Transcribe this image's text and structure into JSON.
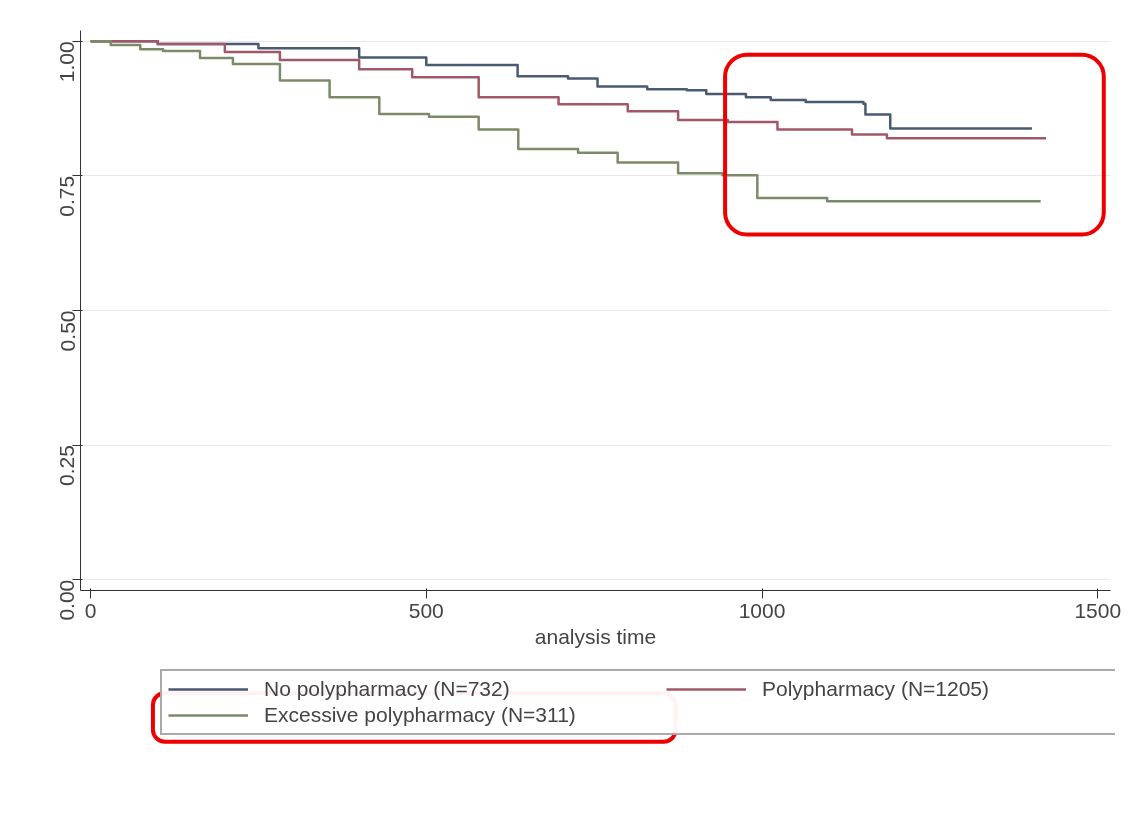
{
  "chart_data": {
    "type": "step",
    "xlabel": "analysis time",
    "xlim": [
      -15,
      1519
    ],
    "ylim": [
      -0.02,
      1.02
    ],
    "xticks": [
      0,
      500,
      1000,
      1500
    ],
    "yticks": [
      {
        "value": 0,
        "label": "0.00"
      },
      {
        "value": 0.25,
        "label": "0.25"
      },
      {
        "value": 0.5,
        "label": "0.50"
      },
      {
        "value": 0.75,
        "label": "0.75"
      },
      {
        "value": 1,
        "label": "1.00"
      }
    ],
    "grid": "y",
    "legend": "bottom",
    "series": [
      {
        "name": "No polypharmacy (N=732)",
        "color": "#4a5a70",
        "x": [
          0,
          100,
          250,
          400,
          500,
          636,
          711,
          755,
          829,
          888,
          917,
          976,
          1013,
          1065,
          1151,
          1154,
          1191,
          1402
        ],
        "values": [
          1.0,
          0.995,
          0.987,
          0.97,
          0.956,
          0.935,
          0.931,
          0.916,
          0.911,
          0.909,
          0.902,
          0.896,
          0.891,
          0.887,
          0.884,
          0.864,
          0.838,
          0.838
        ]
      },
      {
        "name": "Polypharmacy (N=1205)",
        "color": "#a05868",
        "x": [
          0,
          100,
          200,
          282,
          400,
          479,
          578,
          697,
          800,
          875,
          949,
          1023,
          1134,
          1186,
          1423
        ],
        "values": [
          1.0,
          0.995,
          0.98,
          0.965,
          0.948,
          0.933,
          0.896,
          0.883,
          0.87,
          0.854,
          0.85,
          0.836,
          0.827,
          0.82,
          0.82
        ]
      },
      {
        "name": "Excessive polypharmacy (N=311)",
        "color": "#7d8a6a",
        "x": [
          0,
          30,
          74,
          108,
          163,
          212,
          282,
          356,
          430,
          504,
          578,
          637,
          726,
          785,
          875,
          941,
          993,
          1097,
          1415
        ],
        "values": [
          1.0,
          0.993,
          0.985,
          0.982,
          0.969,
          0.958,
          0.927,
          0.896,
          0.865,
          0.86,
          0.836,
          0.8,
          0.793,
          0.775,
          0.755,
          0.751,
          0.709,
          0.703,
          0.703
        ]
      }
    ]
  }
}
